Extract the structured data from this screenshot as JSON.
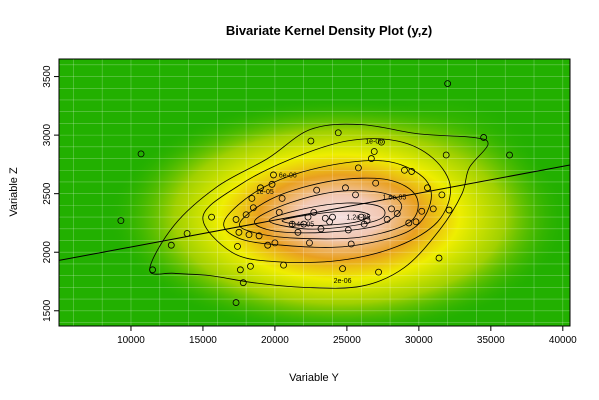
{
  "chart_data": {
    "type": "scatter",
    "title": "Bivariate Kernel Density Plot (y,z)",
    "xlabel": "Variable Y",
    "ylabel": "Variable Z",
    "xlim": [
      5000,
      40500
    ],
    "ylim": [
      1370,
      3650
    ],
    "xticks": [
      10000,
      15000,
      20000,
      25000,
      30000,
      35000,
      40000
    ],
    "yticks": [
      1500,
      2000,
      2500,
      3000,
      3500
    ],
    "grid": true,
    "colors": {
      "background_low": "#22b000",
      "mid": "#9fd000",
      "yellow": "#eeee00",
      "orange": "#e9a020",
      "high": "#f2c8b4",
      "peak": "#f4e0e0",
      "contour": "#000000",
      "grid": "#ffffff"
    },
    "points": [
      [
        9300,
        2270
      ],
      [
        10700,
        2840
      ],
      [
        11500,
        1850
      ],
      [
        12800,
        2060
      ],
      [
        13900,
        2160
      ],
      [
        15600,
        2300
      ],
      [
        17300,
        2280
      ],
      [
        17400,
        2050
      ],
      [
        17500,
        2170
      ],
      [
        17600,
        1850
      ],
      [
        17800,
        1740
      ],
      [
        18000,
        2320
      ],
      [
        18200,
        2150
      ],
      [
        18300,
        1880
      ],
      [
        18400,
        2460
      ],
      [
        18500,
        2380
      ],
      [
        18900,
        2140
      ],
      [
        19000,
        2550
      ],
      [
        19500,
        2060
      ],
      [
        19800,
        2580
      ],
      [
        19900,
        2660
      ],
      [
        20000,
        2080
      ],
      [
        20300,
        2340
      ],
      [
        20500,
        2460
      ],
      [
        20600,
        1890
      ],
      [
        21200,
        2240
      ],
      [
        21600,
        2170
      ],
      [
        22000,
        2240
      ],
      [
        22300,
        2300
      ],
      [
        22400,
        2080
      ],
      [
        22500,
        2950
      ],
      [
        22700,
        2340
      ],
      [
        22900,
        2530
      ],
      [
        23200,
        2200
      ],
      [
        23500,
        2290
      ],
      [
        23800,
        2260
      ],
      [
        24000,
        2300
      ],
      [
        24400,
        3020
      ],
      [
        24700,
        1860
      ],
      [
        24900,
        2550
      ],
      [
        25100,
        2190
      ],
      [
        25300,
        2070
      ],
      [
        25600,
        2490
      ],
      [
        25800,
        2720
      ],
      [
        26000,
        2300
      ],
      [
        26200,
        2240
      ],
      [
        26400,
        2270
      ],
      [
        26700,
        2800
      ],
      [
        26900,
        2860
      ],
      [
        27000,
        2590
      ],
      [
        27200,
        1830
      ],
      [
        27400,
        2940
      ],
      [
        27800,
        2280
      ],
      [
        28100,
        2370
      ],
      [
        28500,
        2330
      ],
      [
        29000,
        2700
      ],
      [
        29300,
        2250
      ],
      [
        29500,
        2690
      ],
      [
        29800,
        2260
      ],
      [
        30200,
        2350
      ],
      [
        30600,
        2550
      ],
      [
        31000,
        2370
      ],
      [
        31400,
        1950
      ],
      [
        31600,
        2490
      ],
      [
        31900,
        2830
      ],
      [
        32000,
        3440
      ],
      [
        32100,
        2360
      ],
      [
        34500,
        2980
      ],
      [
        36300,
        2830
      ],
      [
        17300,
        1570
      ]
    ],
    "regression_line": {
      "x": [
        5000,
        40500
      ],
      "y": [
        1930,
        2745
      ]
    },
    "contour_labels": [
      {
        "text": "1e-06",
        "x": 26900,
        "y": 2950
      },
      {
        "text": "6e-06",
        "x": 20900,
        "y": 2660
      },
      {
        "text": "1e-05",
        "x": 19300,
        "y": 2520
      },
      {
        "text": "1.6e-05",
        "x": 28300,
        "y": 2470
      },
      {
        "text": "1.2e-05",
        "x": 25800,
        "y": 2300
      },
      {
        "text": "1.4e-05",
        "x": 21900,
        "y": 2240
      },
      {
        "text": "2e-06",
        "x": 24700,
        "y": 1760
      }
    ]
  }
}
